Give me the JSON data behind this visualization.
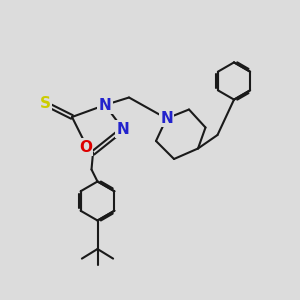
{
  "bg": "#dcdcdc",
  "bc": "#1a1a1a",
  "lw": 1.5,
  "colors": {
    "S": "#cccc00",
    "O": "#dd0000",
    "N": "#2222cc"
  },
  "fs": 10
}
